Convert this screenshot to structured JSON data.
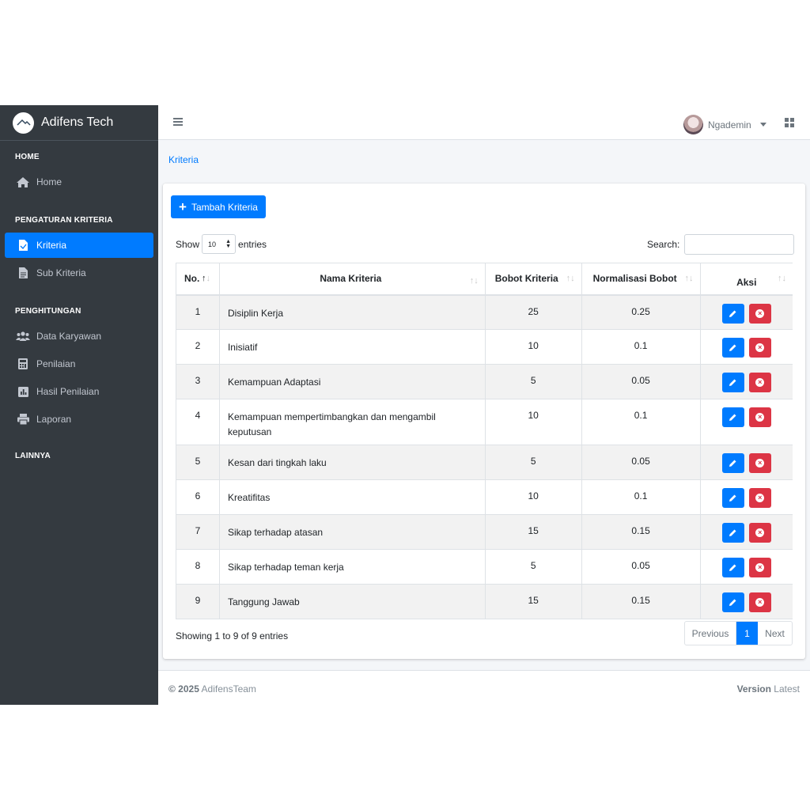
{
  "brand": {
    "name": "Adifens Tech"
  },
  "sidebar": {
    "headers": [
      "HOME",
      "PENGATURAN KRITERIA",
      "PENGHITUNGAN",
      "LAINNYA"
    ],
    "items": [
      {
        "label": "Home",
        "icon": "home-icon"
      },
      {
        "label": "Kriteria",
        "icon": "file-icon",
        "active": true
      },
      {
        "label": "Sub Kriteria",
        "icon": "file-text-icon"
      },
      {
        "label": "Data Karyawan",
        "icon": "users-icon"
      },
      {
        "label": "Penilaian",
        "icon": "calculator-icon"
      },
      {
        "label": "Hasil Penilaian",
        "icon": "chart-icon"
      },
      {
        "label": "Laporan",
        "icon": "printer-icon"
      }
    ]
  },
  "topnav": {
    "user": "Ngademin"
  },
  "breadcrumb": "Kriteria",
  "toolbar": {
    "add_label": "Tambah Kriteria"
  },
  "length": {
    "show": "Show",
    "value": "10",
    "entries": "entries"
  },
  "search": {
    "label": "Search:",
    "value": ""
  },
  "table": {
    "headers": {
      "no": "No.",
      "name": "Nama Kriteria",
      "bobot": "Bobot Kriteria",
      "norm": "Normalisasi Bobot",
      "aksi": "Aksi"
    },
    "rows": [
      {
        "no": "1",
        "name": "Disiplin Kerja",
        "bobot": "25",
        "norm": "0.25"
      },
      {
        "no": "2",
        "name": "Inisiatif",
        "bobot": "10",
        "norm": "0.1"
      },
      {
        "no": "3",
        "name": "Kemampuan Adaptasi",
        "bobot": "5",
        "norm": "0.05"
      },
      {
        "no": "4",
        "name": "Kemampuan mempertimbangkan dan mengambil keputusan",
        "bobot": "10",
        "norm": "0.1"
      },
      {
        "no": "5",
        "name": "Kesan dari tingkah laku",
        "bobot": "5",
        "norm": "0.05"
      },
      {
        "no": "6",
        "name": "Kreatifitas",
        "bobot": "10",
        "norm": "0.1"
      },
      {
        "no": "7",
        "name": "Sikap terhadap atasan",
        "bobot": "15",
        "norm": "0.15"
      },
      {
        "no": "8",
        "name": "Sikap terhadap teman kerja",
        "bobot": "5",
        "norm": "0.05"
      },
      {
        "no": "9",
        "name": "Tanggung Jawab",
        "bobot": "15",
        "norm": "0.15"
      }
    ]
  },
  "info": "Showing 1 to 9 of 9 entries",
  "pagination": {
    "prev": "Previous",
    "current": "1",
    "next": "Next"
  },
  "footer": {
    "copyright": "© 2025",
    "team": "AdifensTeam",
    "version_label": "Version",
    "version_value": "Latest"
  },
  "colors": {
    "primary": "#007bff",
    "danger": "#dc3545",
    "sidebar": "#343a40"
  }
}
